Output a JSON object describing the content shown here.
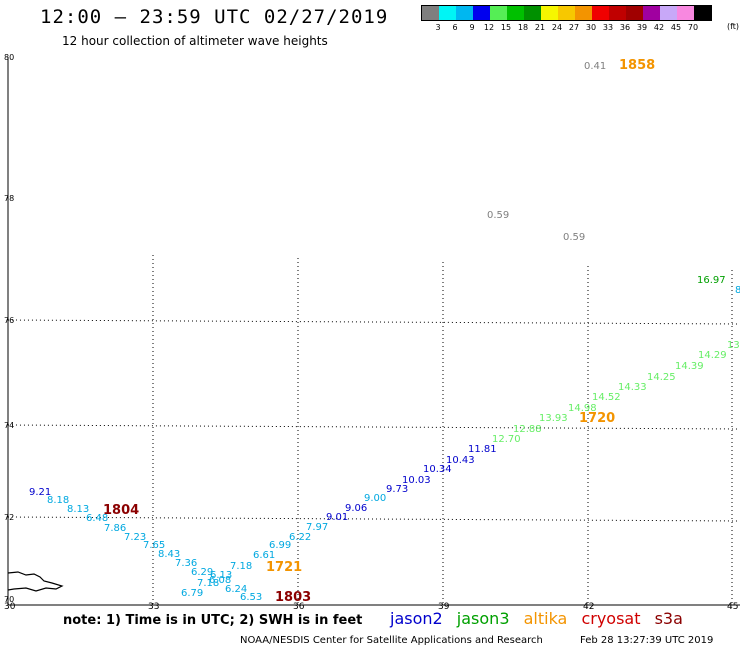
{
  "header": {
    "title": "12:00 – 23:59 UTC 02/27/2019",
    "subtitle": "12 hour collection of altimeter wave heights"
  },
  "color_scale": {
    "colors": [
      "#7f7f7f",
      "#00f5f5",
      "#00b7f0",
      "#0000ee",
      "#55ee55",
      "#00c000",
      "#009000",
      "#f6f600",
      "#f7c800",
      "#f39400",
      "#f00000",
      "#c00000",
      "#a00000",
      "#a000a0",
      "#c8a8f8",
      "#f888e0",
      "#000000"
    ],
    "labels": [
      "3",
      "6",
      "9",
      "12",
      "15",
      "18",
      "21",
      "24",
      "27",
      "30",
      "33",
      "36",
      "39",
      "42",
      "45",
      "70"
    ],
    "unit": "(ft)"
  },
  "map": {
    "lat_labels": [
      "80",
      "78",
      "76",
      "74",
      "72",
      "70"
    ],
    "lon_labels": [
      "30",
      "33",
      "36",
      "39",
      "42",
      "45"
    ],
    "wave_heights": [
      {
        "text": "0.41",
        "color": "#808080"
      },
      {
        "text": "0.59",
        "color": "#808080"
      },
      {
        "text": "0.59",
        "color": "#808080"
      },
      {
        "text": "16.97",
        "color": "#00a000"
      },
      {
        "text": "8",
        "color": "#00a8e0"
      },
      {
        "text": "13",
        "color": "#66ee66"
      },
      {
        "text": "14.29",
        "color": "#66ee66"
      },
      {
        "text": "14.39",
        "color": "#66ee66"
      },
      {
        "text": "14.25",
        "color": "#66ee66"
      },
      {
        "text": "14.33",
        "color": "#66ee66"
      },
      {
        "text": "14.52",
        "color": "#66ee66"
      },
      {
        "text": "14.98",
        "color": "#66ee66"
      },
      {
        "text": "13.93",
        "color": "#66ee66"
      },
      {
        "text": "12.88",
        "color": "#66ee66"
      },
      {
        "text": "12.70",
        "color": "#66ee66"
      },
      {
        "text": "11.81",
        "color": "#0000cc"
      },
      {
        "text": "10.43",
        "color": "#0000cc"
      },
      {
        "text": "10.34",
        "color": "#0000cc"
      },
      {
        "text": "10.03",
        "color": "#0000cc"
      },
      {
        "text": "9.73",
        "color": "#0000cc"
      },
      {
        "text": "9.06",
        "color": "#0000cc"
      },
      {
        "text": "9.01",
        "color": "#0000cc"
      },
      {
        "text": "9.00",
        "color": "#00a8e0"
      },
      {
        "text": "7.97",
        "color": "#00a8e0"
      },
      {
        "text": "6.22",
        "color": "#00a8e0"
      },
      {
        "text": "6.99",
        "color": "#00a8e0"
      },
      {
        "text": "6.61",
        "color": "#00a8e0"
      },
      {
        "text": "7.18",
        "color": "#00a8e0"
      },
      {
        "text": "6.13",
        "color": "#00a8e0"
      },
      {
        "text": "6.08",
        "color": "#00a8e0"
      },
      {
        "text": "6.24",
        "color": "#00a8e0"
      },
      {
        "text": "6.53",
        "color": "#00a8e0"
      },
      {
        "text": "7.18",
        "color": "#00a8e0"
      },
      {
        "text": "6.79",
        "color": "#00a8e0"
      },
      {
        "text": "6.29",
        "color": "#00a8e0"
      },
      {
        "text": "7.36",
        "color": "#00a8e0"
      },
      {
        "text": "8.43",
        "color": "#00a8e0"
      },
      {
        "text": "7.65",
        "color": "#00a8e0"
      },
      {
        "text": "7.23",
        "color": "#00a8e0"
      },
      {
        "text": "7.86",
        "color": "#00a8e0"
      },
      {
        "text": "6.48",
        "color": "#00a8e0"
      },
      {
        "text": "8.13",
        "color": "#00a8e0"
      },
      {
        "text": "8.18",
        "color": "#00a8e0"
      },
      {
        "text": "9.21",
        "color": "#0000cc"
      }
    ],
    "pass_times": [
      {
        "text": "1858",
        "color": "#f39400"
      },
      {
        "text": "1720",
        "color": "#f39400"
      },
      {
        "text": "1804",
        "color": "#8b0000"
      },
      {
        "text": "1721",
        "color": "#f39400"
      },
      {
        "text": "1803",
        "color": "#8b0000"
      }
    ]
  },
  "footer": {
    "note": "note: 1) Time is in UTC; 2) SWH is in feet",
    "satellites": [
      {
        "name": "jason2",
        "color": "#0000cc"
      },
      {
        "name": "jason3",
        "color": "#00a000"
      },
      {
        "name": "altika",
        "color": "#f39400"
      },
      {
        "name": "cryosat",
        "color": "#d00000"
      },
      {
        "name": "s3a",
        "color": "#8b0000"
      }
    ],
    "credit": "NOAA/NESDIS Center for Satellite Applications and Research",
    "timestamp": "Feb 28 13:27:39 UTC 2019"
  }
}
